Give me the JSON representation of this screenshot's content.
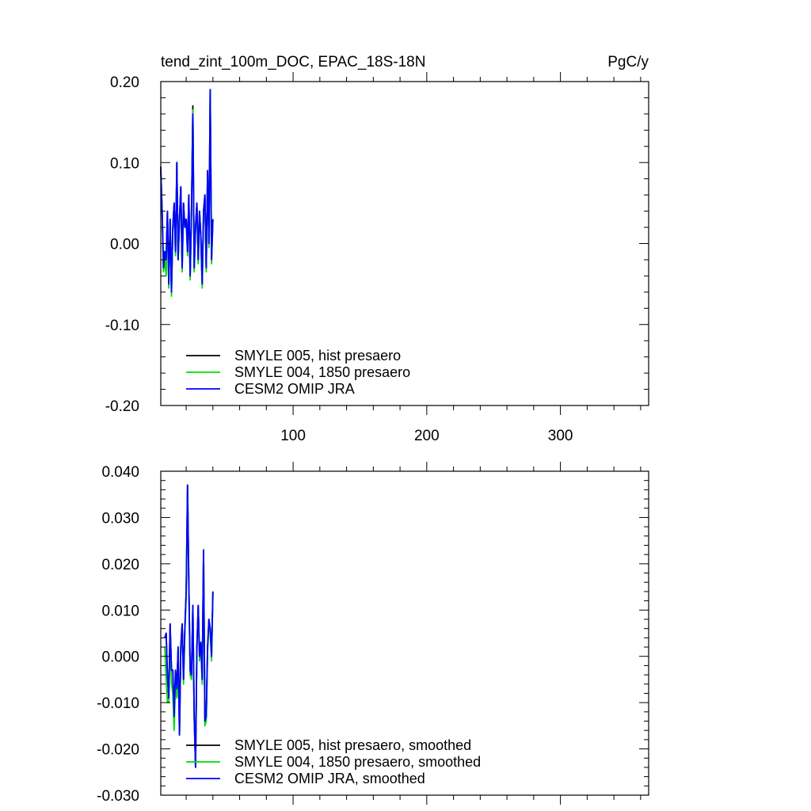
{
  "chart_data": [
    {
      "type": "line",
      "title": "tend_zint_100m_DOC, EPAC_18S-18N",
      "units": "PgC/y",
      "xlabel": "",
      "ylabel": "",
      "xlim": [
        1,
        366
      ],
      "ylim": [
        -0.2,
        0.2
      ],
      "yticks": [
        -0.2,
        -0.1,
        0.0,
        0.1,
        0.2
      ],
      "yticklabels": [
        "-0.20",
        "-0.10",
        "0.00",
        "0.10",
        "0.20"
      ],
      "xticks": [
        100,
        200,
        300
      ],
      "xticklabels": [
        "100",
        "200",
        "300"
      ],
      "legend_position": "bottom-left",
      "series": [
        {
          "name": "SMYLE 005, hist presaero",
          "color": "#000000",
          "x": [
            1,
            2,
            3,
            4,
            5,
            6,
            7,
            8,
            9,
            10,
            11,
            12,
            13,
            14,
            15,
            16,
            17,
            18,
            19,
            20,
            21,
            22,
            23,
            24,
            25,
            26,
            27,
            28,
            29,
            30,
            31,
            32,
            33,
            34,
            35,
            36,
            37,
            38,
            39,
            40
          ],
          "values": [
            0.095,
            0.04,
            -0.03,
            -0.01,
            -0.02,
            0.04,
            -0.05,
            0.03,
            -0.06,
            0.02,
            0.05,
            -0.01,
            0.1,
            -0.02,
            0.03,
            0.07,
            -0.03,
            0.05,
            0.02,
            0.03,
            -0.01,
            0.06,
            -0.04,
            0.04,
            0.17,
            -0.03,
            0.02,
            0.05,
            -0.02,
            0.04,
            0.01,
            -0.05,
            0.04,
            0.06,
            -0.03,
            0.09,
            0.0,
            0.19,
            -0.02,
            0.03
          ]
        },
        {
          "name": "SMYLE 004, 1850 presaero",
          "color": "#00dd00",
          "x": [
            1,
            2,
            3,
            4,
            5,
            6,
            7,
            8,
            9,
            10,
            11,
            12,
            13,
            14,
            15,
            16,
            17,
            18,
            19,
            20,
            21,
            22,
            23,
            24,
            25,
            26,
            27,
            28,
            29,
            30,
            31,
            32,
            33,
            34,
            35,
            36,
            37,
            38,
            39,
            40
          ],
          "values": [
            0.09,
            0.035,
            -0.035,
            -0.02,
            -0.04,
            0.035,
            -0.055,
            0.025,
            -0.065,
            0.02,
            0.045,
            -0.015,
            0.1,
            -0.02,
            0.025,
            0.065,
            -0.035,
            0.045,
            0.02,
            0.025,
            -0.015,
            0.055,
            -0.045,
            0.04,
            0.165,
            -0.035,
            0.02,
            0.045,
            -0.025,
            0.04,
            0.005,
            -0.055,
            0.035,
            0.055,
            -0.035,
            0.085,
            -0.005,
            0.185,
            -0.025,
            0.03
          ]
        },
        {
          "name": "CESM2 OMIP JRA",
          "color": "#0000ff",
          "x": [
            1,
            2,
            3,
            4,
            5,
            6,
            7,
            8,
            9,
            10,
            11,
            12,
            13,
            14,
            15,
            16,
            17,
            18,
            19,
            20,
            21,
            22,
            23,
            24,
            25,
            26,
            27,
            28,
            29,
            30,
            31,
            32,
            33,
            34,
            35,
            36,
            37,
            38,
            39,
            40
          ],
          "values": [
            0.09,
            0.04,
            -0.03,
            -0.01,
            -0.02,
            0.04,
            -0.05,
            0.03,
            -0.06,
            0.02,
            0.05,
            -0.01,
            0.1,
            -0.02,
            0.03,
            0.07,
            -0.03,
            0.05,
            0.02,
            0.03,
            -0.01,
            0.06,
            -0.04,
            0.04,
            0.16,
            -0.03,
            0.02,
            0.05,
            -0.02,
            0.04,
            0.01,
            -0.05,
            0.04,
            0.06,
            -0.03,
            0.09,
            0.0,
            0.19,
            -0.02,
            0.03
          ]
        }
      ]
    },
    {
      "type": "line",
      "title": "",
      "xlabel": "",
      "ylabel": "",
      "xlim": [
        1,
        366
      ],
      "ylim": [
        -0.03,
        0.04
      ],
      "yticks": [
        -0.03,
        -0.02,
        -0.01,
        0.0,
        0.01,
        0.02,
        0.03,
        0.04
      ],
      "yticklabels": [
        "-0.030",
        "-0.020",
        "-0.010",
        "0.000",
        "0.010",
        "0.020",
        "0.030",
        "0.040"
      ],
      "xticks": [
        100,
        200,
        300
      ],
      "legend_position": "bottom-left",
      "series": [
        {
          "name": "SMYLE 005, hist presaero, smoothed",
          "color": "#000000",
          "x": [
            4,
            5,
            6,
            7,
            8,
            9,
            10,
            11,
            12,
            13,
            14,
            15,
            16,
            17,
            18,
            19,
            20,
            21,
            22,
            23,
            24,
            25,
            26,
            27,
            28,
            29,
            30,
            31,
            32,
            33,
            34,
            35,
            36,
            37,
            38,
            39,
            40
          ],
          "values": [
            0.004,
            0.005,
            -0.004,
            -0.009,
            0.007,
            -0.003,
            -0.003,
            -0.013,
            -0.003,
            -0.007,
            0.002,
            -0.017,
            0.002,
            0.007,
            -0.005,
            0.006,
            0.014,
            0.037,
            0.016,
            -0.003,
            -0.004,
            0.011,
            -0.013,
            -0.024,
            0.002,
            0.011,
            0.0,
            0.003,
            -0.005,
            0.023,
            -0.014,
            -0.013,
            0.002,
            0.008,
            0.006,
            0.0,
            0.014
          ]
        },
        {
          "name": "SMYLE 004, 1850 presaero, smoothed",
          "color": "#00dd00",
          "x": [
            4,
            5,
            6,
            7,
            8,
            9,
            10,
            11,
            12,
            13,
            14,
            15,
            16,
            17,
            18,
            19,
            20,
            21,
            22,
            23,
            24,
            25,
            26,
            27,
            28,
            29,
            30,
            31,
            32,
            33,
            34,
            35,
            36,
            37,
            38,
            39,
            40
          ],
          "values": [
            0.002,
            -0.005,
            -0.01,
            -0.01,
            0.005,
            -0.006,
            -0.008,
            -0.016,
            -0.005,
            -0.009,
            0.0,
            -0.017,
            0.001,
            0.006,
            -0.006,
            0.005,
            0.013,
            0.036,
            0.015,
            -0.004,
            -0.005,
            0.01,
            -0.013,
            -0.024,
            0.001,
            0.01,
            -0.001,
            0.002,
            -0.006,
            0.022,
            -0.015,
            -0.014,
            0.001,
            0.007,
            0.005,
            -0.001,
            0.013
          ]
        },
        {
          "name": "CESM2 OMIP JRA, smoothed",
          "color": "#0000ff",
          "x": [
            4,
            5,
            6,
            7,
            8,
            9,
            10,
            11,
            12,
            13,
            14,
            15,
            16,
            17,
            18,
            19,
            20,
            21,
            22,
            23,
            24,
            25,
            26,
            27,
            28,
            29,
            30,
            31,
            32,
            33,
            34,
            35,
            36,
            37,
            38,
            39,
            40
          ],
          "values": [
            0.004,
            0.005,
            -0.004,
            -0.009,
            0.007,
            -0.003,
            -0.003,
            -0.013,
            -0.003,
            -0.007,
            0.002,
            -0.017,
            0.002,
            0.007,
            -0.005,
            0.006,
            0.014,
            0.037,
            0.016,
            -0.003,
            -0.004,
            0.011,
            -0.013,
            -0.024,
            0.002,
            0.011,
            0.0,
            0.003,
            -0.005,
            0.023,
            -0.014,
            -0.013,
            0.002,
            0.008,
            0.006,
            0.0,
            0.014
          ]
        }
      ]
    }
  ]
}
